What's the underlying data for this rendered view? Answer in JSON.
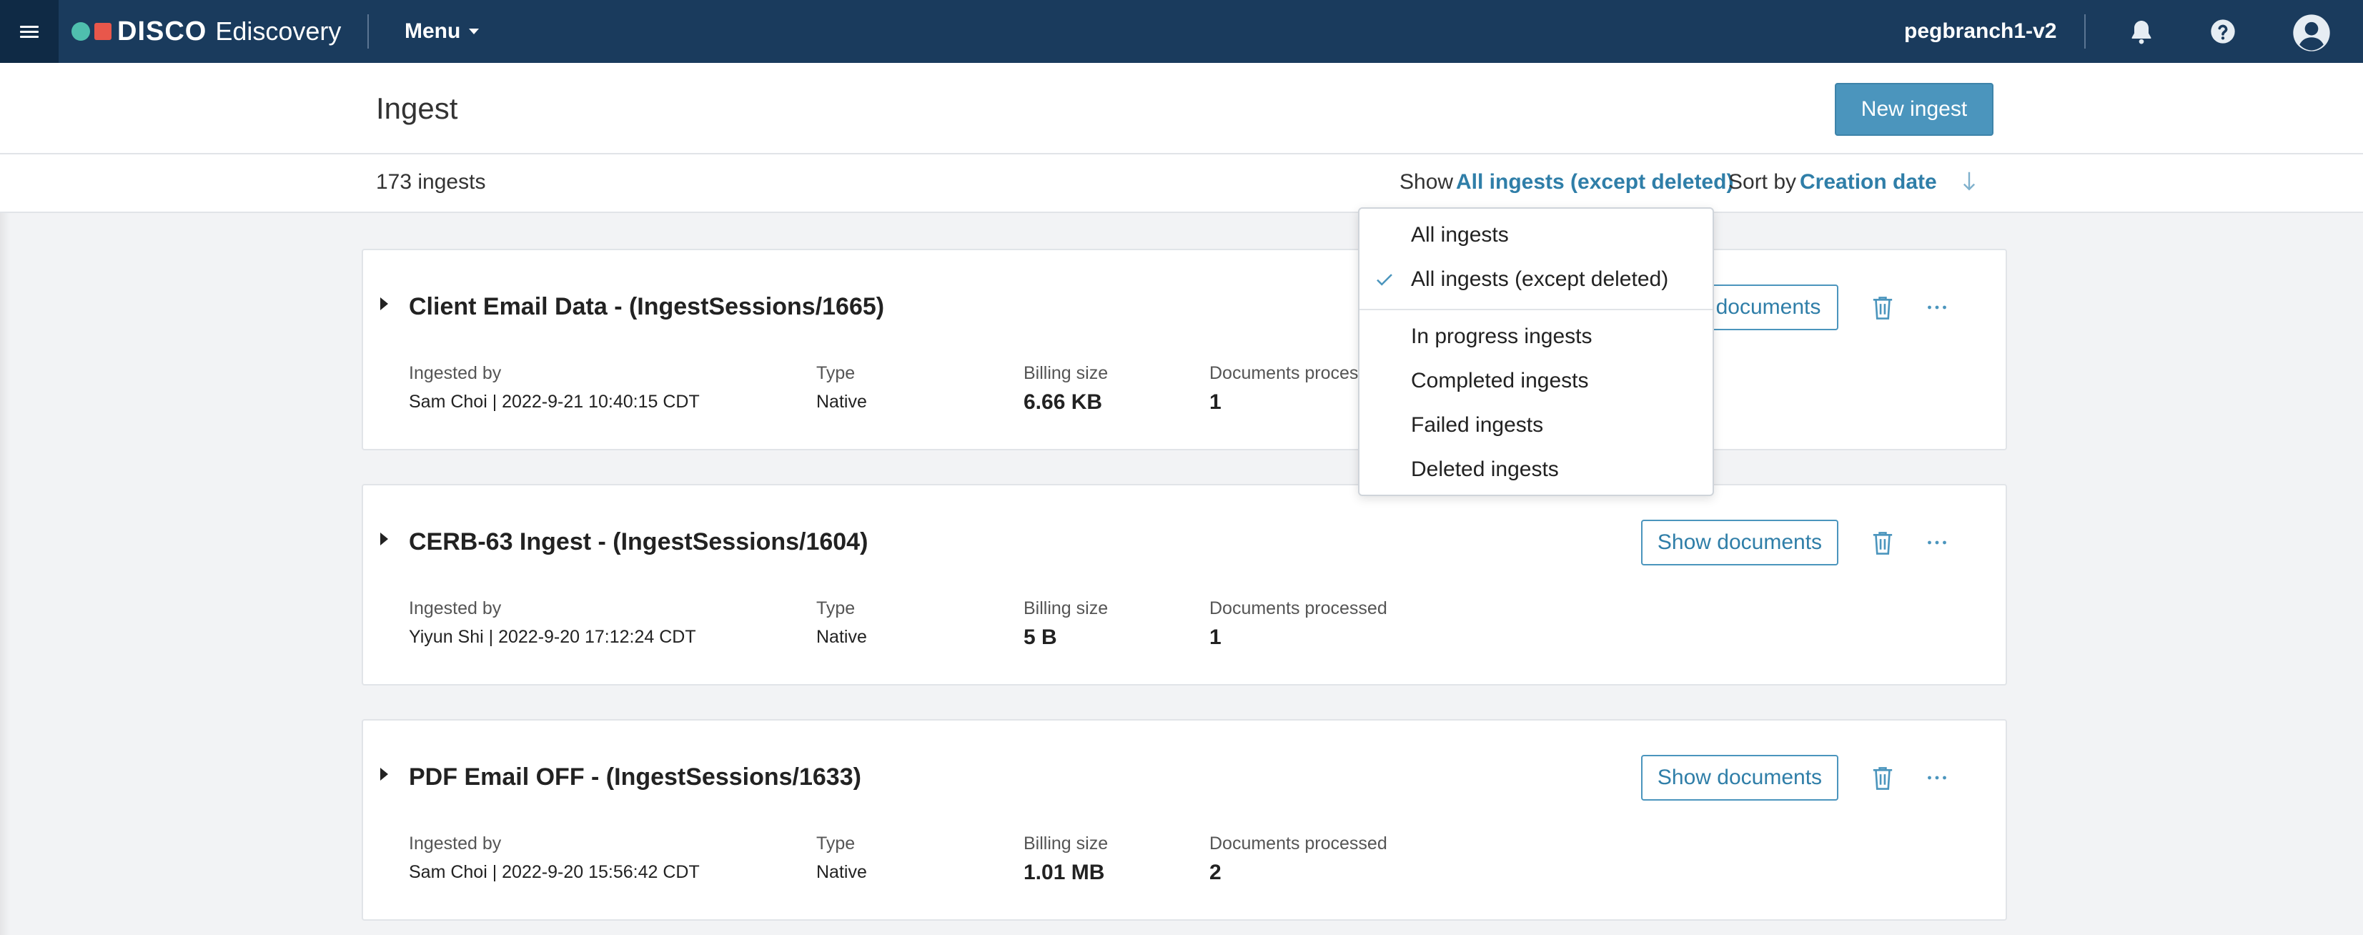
{
  "app": {
    "brand": "DISCO",
    "product": "Ediscovery",
    "menu_label": "Menu",
    "workspace": "pegbranch1-v2"
  },
  "page": {
    "title": "Ingest",
    "new_ingest_label": "New ingest"
  },
  "filter": {
    "count": "173 ingests",
    "show_label": "Show",
    "show_value": "All ingests (except deleted)",
    "sort_label": "Sort by",
    "sort_value": "Creation date"
  },
  "dropdown": {
    "items": [
      {
        "label": "All ingests",
        "selected": false
      },
      {
        "label": "All ingests (except deleted)",
        "selected": true
      },
      {
        "label": "In progress ingests",
        "selected": false
      },
      {
        "label": "Completed ingests",
        "selected": false
      },
      {
        "label": "Failed ingests",
        "selected": false
      },
      {
        "label": "Deleted ingests",
        "selected": false
      }
    ]
  },
  "labels": {
    "ingested_by": "Ingested by",
    "type": "Type",
    "billing_size": "Billing size",
    "documents_processed": "Documents processed",
    "show_documents": "Show documents"
  },
  "ingests": [
    {
      "title": "Client Email Data - (IngestSessions/1665)",
      "ingested_by": "Sam Choi  |  2022-9-21 10:40:15 CDT",
      "type": "Native",
      "billing_size": "6.66 KB",
      "documents_processed": "1",
      "documents_label_visible": "Documents process",
      "show_documents_visible": "documents"
    },
    {
      "title": "CERB-63 Ingest - (IngestSessions/1604)",
      "ingested_by": "Yiyun Shi  |  2022-9-20 17:12:24 CDT",
      "type": "Native",
      "billing_size": "5 B",
      "documents_processed": "1"
    },
    {
      "title": "PDF Email OFF - (IngestSessions/1633)",
      "ingested_by": "Sam Choi  |  2022-9-20 15:56:42 CDT",
      "type": "Native",
      "billing_size": "1.01 MB",
      "documents_processed": "2"
    }
  ],
  "icons": {
    "hamburger": "hamburger-icon",
    "bell": "bell-icon",
    "help": "help-icon",
    "account": "account-icon",
    "trash": "trash-icon",
    "more": "more-horizontal-icon",
    "expand": "chevron-right-icon",
    "sort": "arrow-down-icon",
    "check": "check-icon"
  },
  "colors": {
    "topbar": "#1a3b5d",
    "accent": "#2f7ea8",
    "primary_button": "#4b95bd",
    "logo_teal": "#4fbfae",
    "logo_red": "#e8574b"
  }
}
